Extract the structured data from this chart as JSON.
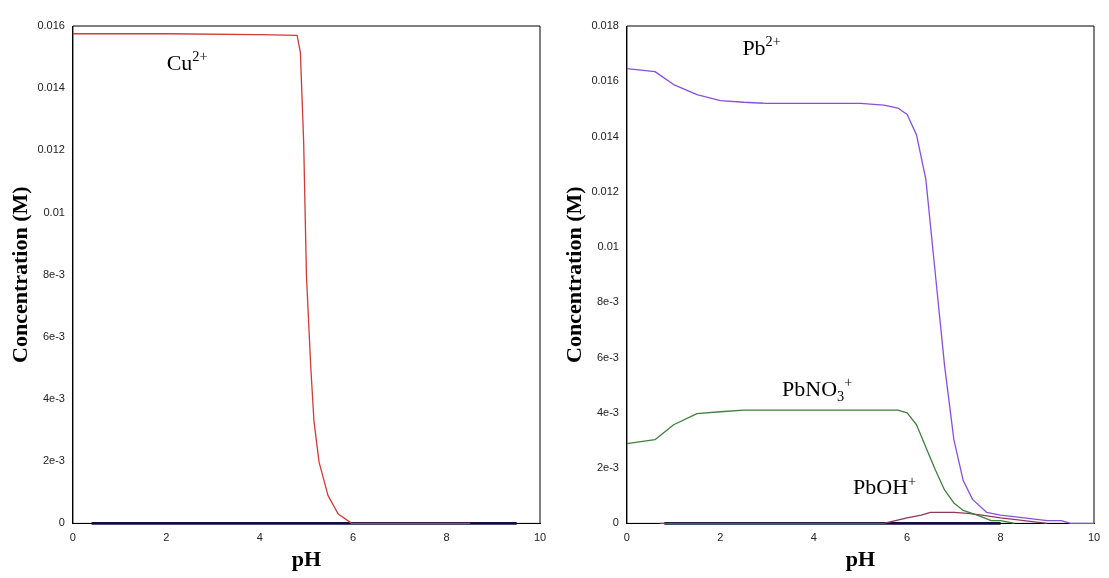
{
  "chart_data": [
    {
      "type": "line",
      "xlabel": "pH",
      "ylabel": "Concentration (M)",
      "xlim": [
        0,
        10
      ],
      "xticks": [
        0,
        2,
        4,
        6,
        8,
        10
      ],
      "ylim": [
        0,
        0.016
      ],
      "yticks": [
        0,
        {
          "value": 0.002,
          "label": "2e-3"
        },
        {
          "value": 0.004,
          "label": "4e-3"
        },
        {
          "value": 0.006,
          "label": "6e-3"
        },
        {
          "value": 0.008,
          "label": "8e-3"
        },
        0.01,
        0.012,
        0.014,
        0.016
      ],
      "marker": "none",
      "line_style": "solid",
      "series": [
        {
          "name": "Cu$^{2+}$",
          "color": "#d03a3a",
          "x": [
            0,
            2,
            4,
            4.8,
            4.87,
            4.94,
            5.0,
            5.09,
            5.16,
            5.27,
            5.46,
            5.68,
            5.97,
            7,
            8.5
          ],
          "values": [
            0.01575,
            0.01575,
            0.01572,
            0.0157,
            0.01514,
            0.01227,
            0.00796,
            0.00509,
            0.0033,
            0.00197,
            0.0009,
            0.0003,
            0,
            0,
            0
          ]
        },
        {
          "color": "#101040",
          "x": [
            0.4,
            9.5
          ],
          "values": [
            0,
            0
          ]
        }
      ]
    },
    {
      "type": "line",
      "xlabel": "pH",
      "ylabel": "Concentration (M)",
      "xlim": [
        0,
        10
      ],
      "xticks": [
        0,
        2,
        4,
        6,
        8,
        10
      ],
      "ylim": [
        0,
        0.018
      ],
      "yticks": [
        0,
        {
          "value": 0.002,
          "label": "2e-3"
        },
        {
          "value": 0.004,
          "label": "4e-3"
        },
        {
          "value": 0.006,
          "label": "6e-3"
        },
        {
          "value": 0.008,
          "label": "8e-3"
        },
        0.01,
        0.012,
        0.014,
        0.016,
        0.018
      ],
      "marker": "none",
      "line_style": "solid",
      "series": [
        {
          "name": "Pb$^{2+}$",
          "color": "#8a4fd8",
          "x": [
            0,
            0.6,
            1,
            1.5,
            2,
            2.5,
            3,
            4,
            5,
            5.5,
            5.8,
            6,
            6.2,
            6.4,
            6.6,
            6.8,
            7,
            7.2,
            7.4,
            7.7,
            8,
            8.5,
            9,
            9.3,
            9.5,
            10
          ],
          "values": [
            0.01646,
            0.01635,
            0.01588,
            0.01552,
            0.0153,
            0.01524,
            0.0152,
            0.0152,
            0.0152,
            0.01514,
            0.01503,
            0.0148,
            0.01406,
            0.01245,
            0.00908,
            0.00572,
            0.00303,
            0.00155,
            0.00087,
            0.0004,
            0.0003,
            0.0002,
            0.0001,
            0.0001,
            0,
            0
          ]
        },
        {
          "name": "PbNO$_{3}$$^{+}$",
          "color": "#3f7f3f",
          "x": [
            0,
            0.6,
            1,
            1.5,
            2,
            2.5,
            3,
            4,
            5,
            5.8,
            6,
            6.2,
            6.4,
            6.6,
            6.8,
            7,
            7.2,
            7.5,
            7.8,
            8,
            8.3
          ],
          "values": [
            0.00289,
            0.00303,
            0.00357,
            0.00397,
            0.00404,
            0.0041,
            0.0041,
            0.0041,
            0.0041,
            0.0041,
            0.004,
            0.00357,
            0.00276,
            0.00195,
            0.00121,
            0.00074,
            0.00047,
            0.0003,
            0.0001,
            0.0001,
            0
          ]
        },
        {
          "name": "PbOH$^{+}$",
          "color": "#8b3a5a",
          "x": [
            0.7,
            5.5,
            6,
            6.3,
            6.5,
            7,
            7.3,
            7.6,
            8,
            8.5,
            9
          ],
          "values": [
            0,
            0,
            0.0002,
            0.0003,
            0.0004,
            0.0004,
            0.00036,
            0.0003,
            0.0002,
            0.0001,
            0
          ]
        },
        {
          "color": "#101040",
          "x": [
            0.8,
            8
          ],
          "values": [
            0,
            0
          ]
        }
      ]
    }
  ]
}
